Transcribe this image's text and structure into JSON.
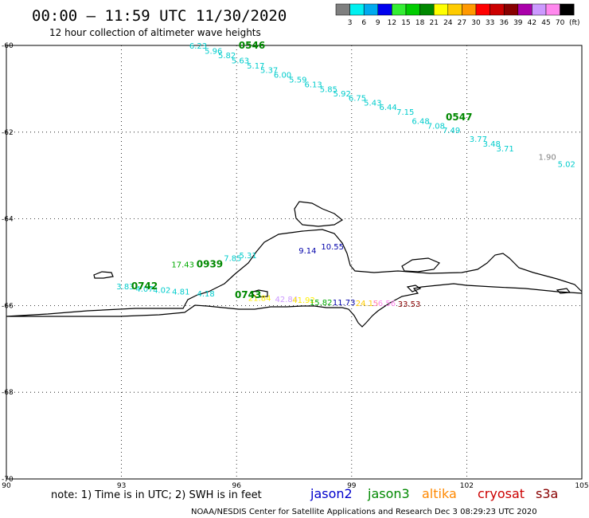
{
  "header": {
    "title": "00:00 – 11:59 UTC 11/30/2020",
    "subtitle": "12 hour collection of altimeter wave heights"
  },
  "legend": {
    "colors": [
      "#7f7f7f",
      "#00f0f0",
      "#00aaee",
      "#0000ee",
      "#33ee33",
      "#00cc00",
      "#008800",
      "#ffff00",
      "#ffcc00",
      "#ff9900",
      "#ff0000",
      "#cc0000",
      "#880000",
      "#aa00aa",
      "#cc99ff",
      "#ff88ee",
      "#000000"
    ],
    "ticks": [
      "3",
      "6",
      "9",
      "12",
      "15",
      "18",
      "21",
      "24",
      "27",
      "30",
      "33",
      "36",
      "39",
      "42",
      "45",
      "70"
    ],
    "unit": "(ft)"
  },
  "footer": {
    "note": "note:  1) Time is in UTC; 2) SWH is in feet",
    "satellites": [
      {
        "name": "jason2",
        "color": "#0000cc"
      },
      {
        "name": "jason3",
        "color": "#008800"
      },
      {
        "name": "altika",
        "color": "#ff8800"
      },
      {
        "name": "cryosat",
        "color": "#cc0000"
      },
      {
        "name": "s3a",
        "color": "#880000"
      }
    ],
    "credit": "NOAA/NESDIS Center for Satellite Applications and Research   Dec  3 08:29:23 UTC 2020"
  },
  "chart_data": {
    "type": "scatter",
    "title": "00:00 – 11:59 UTC 11/30/2020",
    "subtitle": "12 hour collection of altimeter wave heights",
    "xlim": [
      90,
      105
    ],
    "ylim": [
      -70,
      -60
    ],
    "xticks": [
      "90",
      "93",
      "96",
      "99",
      "102",
      "105"
    ],
    "yticks": [
      "-60",
      "-62",
      "-64",
      "-66",
      "-68",
      "-70"
    ],
    "xtick_values": [
      90,
      93,
      96,
      99,
      102,
      105
    ],
    "ytick_values": [
      -60,
      -62,
      -64,
      -66,
      -68,
      -70
    ],
    "grid": true,
    "pass_labels": [
      {
        "text": "0546",
        "x": 96.4,
        "y": -60.0,
        "color": "#008800"
      },
      {
        "text": "0547",
        "x": 101.8,
        "y": -61.65,
        "color": "#008800"
      },
      {
        "text": "0939",
        "x": 95.3,
        "y": -65.05,
        "color": "#008800"
      },
      {
        "text": "0742",
        "x": 93.6,
        "y": -65.55,
        "color": "#008800"
      },
      {
        "text": "0743",
        "x": 96.3,
        "y": -65.75,
        "color": "#008800"
      }
    ],
    "points": [
      {
        "v": "6.23",
        "x": 95.0,
        "y": -60.0,
        "color": "#00cccc"
      },
      {
        "v": "5.96",
        "x": 95.4,
        "y": -60.12,
        "color": "#00cccc"
      },
      {
        "v": "5.82",
        "x": 95.75,
        "y": -60.22,
        "color": "#00cccc"
      },
      {
        "v": "5.63",
        "x": 96.1,
        "y": -60.34,
        "color": "#00cccc"
      },
      {
        "v": "5.17",
        "x": 96.5,
        "y": -60.46,
        "color": "#00cccc"
      },
      {
        "v": "5.37",
        "x": 96.85,
        "y": -60.56,
        "color": "#00cccc"
      },
      {
        "v": "6.00",
        "x": 97.2,
        "y": -60.67,
        "color": "#00cccc"
      },
      {
        "v": "5.59",
        "x": 97.6,
        "y": -60.78,
        "color": "#00cccc"
      },
      {
        "v": "6.13",
        "x": 98.0,
        "y": -60.89,
        "color": "#00cccc"
      },
      {
        "v": "5.85",
        "x": 98.4,
        "y": -61.0,
        "color": "#00cccc"
      },
      {
        "v": "5.92",
        "x": 98.75,
        "y": -61.1,
        "color": "#00cccc"
      },
      {
        "v": "6.75",
        "x": 99.15,
        "y": -61.2,
        "color": "#00cccc"
      },
      {
        "v": "5.43",
        "x": 99.55,
        "y": -61.31,
        "color": "#00cccc"
      },
      {
        "v": "6.44",
        "x": 99.95,
        "y": -61.42,
        "color": "#00cccc"
      },
      {
        "v": "7.15",
        "x": 100.4,
        "y": -61.53,
        "color": "#00cccc"
      },
      {
        "v": "6.48",
        "x": 100.8,
        "y": -61.74,
        "color": "#00cccc"
      },
      {
        "v": "7.08",
        "x": 101.2,
        "y": -61.85,
        "color": "#00cccc"
      },
      {
        "v": "7.49",
        "x": 101.6,
        "y": -61.95,
        "color": "#00cccc"
      },
      {
        "v": "3.77",
        "x": 102.3,
        "y": -62.15,
        "color": "#00cccc"
      },
      {
        "v": "3.48",
        "x": 102.65,
        "y": -62.26,
        "color": "#00cccc"
      },
      {
        "v": "3.71",
        "x": 103.0,
        "y": -62.37,
        "color": "#00cccc"
      },
      {
        "v": "1.90",
        "x": 104.1,
        "y": -62.56,
        "color": "#7f7f7f"
      },
      {
        "v": "5.02",
        "x": 104.6,
        "y": -62.73,
        "color": "#00cccc"
      },
      {
        "v": "9.14",
        "x": 97.85,
        "y": -64.72,
        "color": "#0000aa"
      },
      {
        "v": "10.55",
        "x": 98.5,
        "y": -64.63,
        "color": "#0000aa"
      },
      {
        "v": "17.43",
        "x": 94.6,
        "y": -65.05,
        "color": "#00aa00"
      },
      {
        "v": "7.85",
        "x": 95.9,
        "y": -64.9,
        "color": "#00cccc"
      },
      {
        "v": "5.31",
        "x": 96.3,
        "y": -64.83,
        "color": "#00cccc"
      },
      {
        "v": "3.83",
        "x": 93.1,
        "y": -65.55,
        "color": "#00cccc"
      },
      {
        "v": "4.07",
        "x": 93.6,
        "y": -65.61,
        "color": "#00cccc"
      },
      {
        "v": "4.02",
        "x": 94.05,
        "y": -65.63,
        "color": "#00cccc"
      },
      {
        "v": "4.81",
        "x": 94.55,
        "y": -65.67,
        "color": "#00cccc"
      },
      {
        "v": "4.18",
        "x": 95.2,
        "y": -65.72,
        "color": "#00cccc"
      },
      {
        "v": "21.84",
        "x": 96.6,
        "y": -65.82,
        "color": "#ffee00"
      },
      {
        "v": "42.84",
        "x": 97.3,
        "y": -65.85,
        "color": "#cc99ff"
      },
      {
        "v": "41.92",
        "x": 97.75,
        "y": -65.86,
        "color": "#ffee00"
      },
      {
        "v": "15.82",
        "x": 98.2,
        "y": -65.92,
        "color": "#00aa00"
      },
      {
        "v": "11.73",
        "x": 98.8,
        "y": -65.92,
        "color": "#0000aa"
      },
      {
        "v": "24.15",
        "x": 99.4,
        "y": -65.94,
        "color": "#ffcc00"
      },
      {
        "v": "56.56",
        "x": 99.85,
        "y": -65.94,
        "color": "#ff88ee"
      },
      {
        "v": "33.53",
        "x": 100.5,
        "y": -65.96,
        "color": "#880000"
      }
    ]
  }
}
